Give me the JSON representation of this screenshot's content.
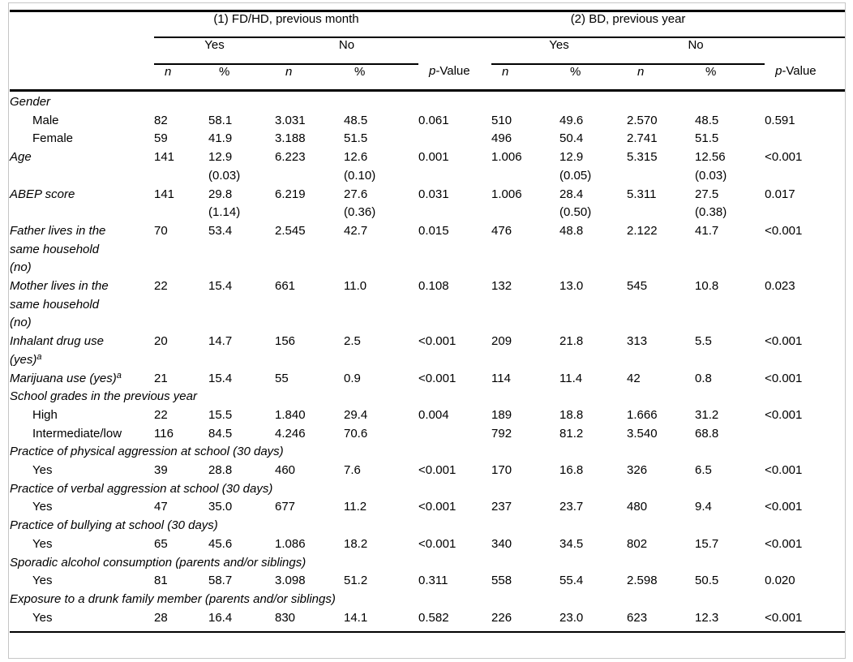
{
  "table": {
    "group1_title": "(1) FD/HD, previous month",
    "group2_title": "(2) BD, previous year",
    "yes_label": "Yes",
    "no_label": "No",
    "n_label": "n",
    "pct_label": "%",
    "p_label_italic": "p",
    "p_label_rest": "-Value",
    "rows": [
      {
        "type": "section",
        "label": "Gender"
      },
      {
        "type": "data",
        "indent": true,
        "label": "Male",
        "cells": [
          "82",
          "58.1",
          "3.031",
          "48.5",
          "0.061",
          "510",
          "49.6",
          "2.570",
          "48.5",
          "0.591"
        ]
      },
      {
        "type": "data",
        "indent": true,
        "label": "Female",
        "cells": [
          "59",
          "41.9",
          "3.188",
          "51.5",
          "",
          "496",
          "50.4",
          "2.741",
          "51.5",
          ""
        ]
      },
      {
        "type": "data",
        "italic": true,
        "label": "Age",
        "cells": [
          "141",
          "12.9\n(0.03)",
          "6.223",
          "12.6\n(0.10)",
          "0.001",
          "1.006",
          "12.9\n(0.05)",
          "5.315",
          "12.56\n(0.03)",
          "<0.001"
        ]
      },
      {
        "type": "data",
        "italic": true,
        "label": "ABEP score",
        "cells": [
          "141",
          "29.8\n(1.14)",
          "6.219",
          "27.6\n(0.36)",
          "0.031",
          "1.006",
          "28.4\n(0.50)",
          "5.311",
          "27.5\n(0.38)",
          "0.017"
        ]
      },
      {
        "type": "data",
        "italic": true,
        "wrap": true,
        "label": "Father lives in the same household (no)",
        "cells": [
          "70",
          "53.4",
          "2.545",
          "42.7",
          "0.015",
          "476",
          "48.8",
          "2.122",
          "41.7",
          "<0.001"
        ]
      },
      {
        "type": "data",
        "italic": true,
        "wrap": true,
        "label": "Mother lives in the same household (no)",
        "cells": [
          "22",
          "15.4",
          "661",
          "11.0",
          "0.108",
          "132",
          "13.0",
          "545",
          "10.8",
          "0.023"
        ]
      },
      {
        "type": "data",
        "italic": true,
        "wrap": true,
        "label": "Inhalant drug use (yes)",
        "sup": "a",
        "cells": [
          "20",
          "14.7",
          "156",
          "2.5",
          "<0.001",
          "209",
          "21.8",
          "313",
          "5.5",
          "<0.001"
        ]
      },
      {
        "type": "data",
        "italic": true,
        "wrap": true,
        "label": "Marijuana use (yes)",
        "sup": "a",
        "cells": [
          "21",
          "15.4",
          "55",
          "0.9",
          "<0.001",
          "114",
          "11.4",
          "42",
          "0.8",
          "<0.001"
        ]
      },
      {
        "type": "section",
        "label": "School grades in the previous year"
      },
      {
        "type": "data",
        "indent": true,
        "label": "High",
        "cells": [
          "22",
          "15.5",
          "1.840",
          "29.4",
          "0.004",
          "189",
          "18.8",
          "1.666",
          "31.2",
          "<0.001"
        ]
      },
      {
        "type": "data",
        "indent": true,
        "label": "Intermediate/low",
        "cells": [
          "116",
          "84.5",
          "4.246",
          "70.6",
          "",
          "792",
          "81.2",
          "3.540",
          "68.8",
          ""
        ]
      },
      {
        "type": "section",
        "label": "Practice of physical aggression at school (30 days)"
      },
      {
        "type": "data",
        "indent": true,
        "label": "Yes",
        "cells": [
          "39",
          "28.8",
          "460",
          "7.6",
          "<0.001",
          "170",
          "16.8",
          "326",
          "6.5",
          "<0.001"
        ]
      },
      {
        "type": "section",
        "label": "Practice of verbal aggression at school (30 days)"
      },
      {
        "type": "data",
        "indent": true,
        "label": "Yes",
        "cells": [
          "47",
          "35.0",
          "677",
          "11.2",
          "<0.001",
          "237",
          "23.7",
          "480",
          "9.4",
          "<0.001"
        ]
      },
      {
        "type": "section",
        "label": "Practice of bullying at school (30 days)"
      },
      {
        "type": "data",
        "indent": true,
        "label": "Yes",
        "cells": [
          "65",
          "45.6",
          "1.086",
          "18.2",
          "<0.001",
          "340",
          "34.5",
          "802",
          "15.7",
          "<0.001"
        ]
      },
      {
        "type": "section",
        "label": "Sporadic alcohol consumption (parents and/or siblings)"
      },
      {
        "type": "data",
        "indent": true,
        "label": "Yes",
        "cells": [
          "81",
          "58.7",
          "3.098",
          "51.2",
          "0.311",
          "558",
          "55.4",
          "2.598",
          "50.5",
          "0.020"
        ]
      },
      {
        "type": "section",
        "label": "Exposure to a drunk family member (parents and/or siblings)"
      },
      {
        "type": "data",
        "indent": true,
        "label": "Yes",
        "cells": [
          "28",
          "16.4",
          "830",
          "14.1",
          "0.582",
          "226",
          "23.0",
          "623",
          "12.3",
          "<0.001"
        ]
      }
    ]
  },
  "colors": {
    "rule": "#000000",
    "frame": "#c6c6c6",
    "text": "#000000",
    "background": "#ffffff"
  }
}
